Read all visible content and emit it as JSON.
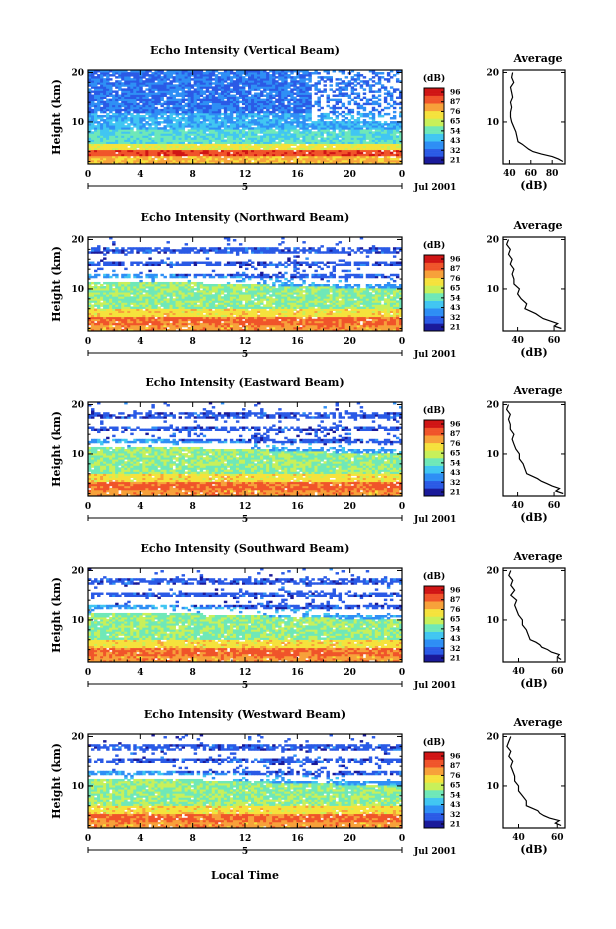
{
  "figure": {
    "xlabel": "Local Time",
    "date_label": "Jul 2001",
    "day_label": "5",
    "colorbar_label": "(dB)",
    "colorbar_ticks": [
      "96",
      "87",
      "76",
      "65",
      "54",
      "43",
      "32",
      "21"
    ],
    "colormap": [
      "#1a1a9a",
      "#2a5ae6",
      "#2f8ff5",
      "#41c6f2",
      "#6fe8b8",
      "#c8f05a",
      "#f5e23c",
      "#f7a13a",
      "#f0542a",
      "#d01515"
    ]
  },
  "chart_data": [
    {
      "type": "heatmap",
      "title": "Echo Intensity (Vertical Beam)",
      "ylabel": "Height (km)",
      "xticks": [
        "0",
        "4",
        "8",
        "12",
        "16",
        "20",
        "0"
      ],
      "yticks": [
        "10",
        "20"
      ],
      "xlim": [
        0,
        24
      ],
      "ylim": [
        1.5,
        20.5
      ],
      "clim": [
        21,
        96
      ],
      "profile": {
        "title": "Average",
        "xlabel": "(dB)",
        "xticks": [
          "40",
          "60",
          "80"
        ],
        "yticks": [
          "10",
          "20"
        ],
        "xlim": [
          34,
          92
        ],
        "height": [
          2,
          2.5,
          3,
          3.5,
          4,
          4.5,
          5,
          5.5,
          6,
          7,
          8,
          9,
          10,
          11,
          12,
          13,
          14,
          15,
          16,
          17,
          18,
          19,
          20
        ],
        "value": [
          90,
          86,
          80,
          70,
          62,
          58,
          55,
          52,
          48,
          47,
          46,
          44,
          42,
          41,
          41,
          42,
          41,
          43,
          42,
          41,
          44,
          42,
          43
        ]
      }
    },
    {
      "type": "heatmap",
      "title": "Echo Intensity (Northward Beam)",
      "ylabel": "Height (km)",
      "xticks": [
        "0",
        "4",
        "8",
        "12",
        "16",
        "20",
        "0"
      ],
      "yticks": [
        "10",
        "20"
      ],
      "xlim": [
        0,
        24
      ],
      "ylim": [
        1.5,
        20.5
      ],
      "clim": [
        21,
        96
      ],
      "profile": {
        "title": "Average",
        "xlabel": "(dB)",
        "xticks": [
          "40",
          "60"
        ],
        "yticks": [
          "10",
          "20"
        ],
        "xlim": [
          32,
          66
        ],
        "height": [
          2,
          2.5,
          3,
          3.5,
          4,
          4.5,
          5,
          5.5,
          6,
          7,
          8,
          9,
          10,
          11,
          12,
          13,
          14,
          15,
          16,
          17,
          18,
          19,
          20
        ],
        "value": [
          64,
          60,
          62,
          58,
          54,
          52,
          50,
          47,
          44,
          45,
          42,
          40,
          41,
          38,
          38,
          37,
          38,
          36,
          37,
          35,
          36,
          34,
          35
        ]
      }
    },
    {
      "type": "heatmap",
      "title": "Echo Intensity (Eastward Beam)",
      "ylabel": "Height (km)",
      "xticks": [
        "0",
        "4",
        "8",
        "12",
        "16",
        "20",
        "0"
      ],
      "yticks": [
        "10",
        "20"
      ],
      "xlim": [
        0,
        24
      ],
      "ylim": [
        1.5,
        20.5
      ],
      "clim": [
        21,
        96
      ],
      "profile": {
        "title": "Average",
        "xlabel": "(dB)",
        "xticks": [
          "40",
          "60"
        ],
        "yticks": [
          "10",
          "20"
        ],
        "xlim": [
          32,
          66
        ],
        "height": [
          2,
          2.5,
          3,
          3.5,
          4,
          4.5,
          5,
          5.5,
          6,
          7,
          8,
          9,
          10,
          11,
          12,
          13,
          14,
          15,
          16,
          17,
          18,
          19,
          20
        ],
        "value": [
          65,
          61,
          63,
          59,
          56,
          53,
          51,
          48,
          45,
          44,
          43,
          41,
          41,
          39,
          38,
          37,
          38,
          36,
          36,
          35,
          36,
          34,
          35
        ]
      }
    },
    {
      "type": "heatmap",
      "title": "Echo Intensity (Southward Beam)",
      "ylabel": "Height (km)",
      "xticks": [
        "0",
        "4",
        "8",
        "12",
        "16",
        "20",
        "0"
      ],
      "yticks": [
        "10",
        "20"
      ],
      "xlim": [
        0,
        24
      ],
      "ylim": [
        1.5,
        20.5
      ],
      "clim": [
        21,
        96
      ],
      "profile": {
        "title": "Average",
        "xlabel": "(dB)",
        "xticks": [
          "40",
          "60"
        ],
        "yticks": [
          "10",
          "20"
        ],
        "xlim": [
          32,
          64
        ],
        "height": [
          2,
          2.5,
          3,
          3.5,
          4,
          4.5,
          5,
          5.5,
          6,
          7,
          8,
          9,
          10,
          11,
          12,
          13,
          14,
          15,
          16,
          17,
          18,
          19,
          20
        ],
        "value": [
          62,
          60,
          61,
          57,
          55,
          52,
          51,
          49,
          46,
          45,
          44,
          42,
          42,
          40,
          39,
          38,
          39,
          36,
          38,
          36,
          37,
          35,
          36
        ]
      }
    },
    {
      "type": "heatmap",
      "title": "Echo Intensity (Westward Beam)",
      "ylabel": "Height (km)",
      "xticks": [
        "0",
        "4",
        "8",
        "12",
        "16",
        "20",
        "0"
      ],
      "yticks": [
        "10",
        "20"
      ],
      "xlim": [
        0,
        24
      ],
      "ylim": [
        1.5,
        20.5
      ],
      "clim": [
        21,
        96
      ],
      "profile": {
        "title": "Average",
        "xlabel": "(dB)",
        "xticks": [
          "40",
          "60"
        ],
        "yticks": [
          "10",
          "20"
        ],
        "xlim": [
          32,
          64
        ],
        "height": [
          2,
          2.5,
          3,
          3.5,
          4,
          4.5,
          5,
          5.5,
          6,
          7,
          8,
          9,
          10,
          11,
          12,
          13,
          14,
          15,
          16,
          17,
          18,
          19,
          20
        ],
        "value": [
          62,
          59,
          61,
          56,
          53,
          51,
          50,
          47,
          44,
          44,
          42,
          40,
          40,
          38,
          38,
          37,
          36,
          37,
          35,
          36,
          34,
          35,
          36
        ]
      }
    }
  ]
}
